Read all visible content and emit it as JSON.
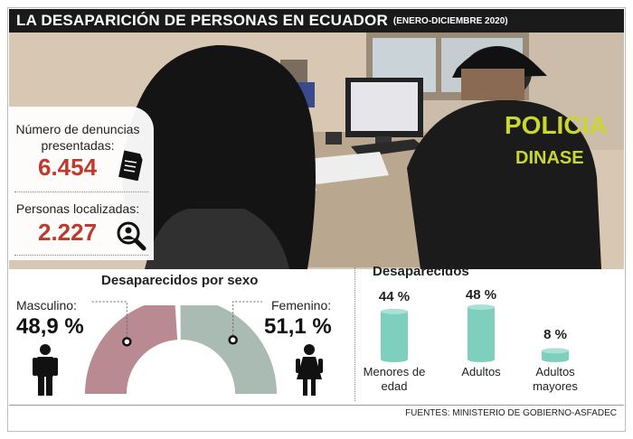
{
  "title": "LA DESAPARICIÓN DE PERSONAS EN ECUADOR",
  "subtitle": "(ENERO-DICIEMBRE 2020)",
  "stats": {
    "denuncias_label": "Número de denuncias presentadas:",
    "denuncias_value": "6.454",
    "localizadas_label": "Personas localizadas:",
    "localizadas_value": "2.227"
  },
  "photo": {
    "vest_line1": "POLICIA",
    "vest_line2": "DINASE"
  },
  "colors": {
    "masculino": "#b98a92",
    "femenino": "#a9bbb2",
    "bar": "#7fcfbf",
    "bar_top": "#a8e2d6",
    "value_red": "#c0392b"
  },
  "chart_data": [
    {
      "type": "pie",
      "title": "Desaparecidos por sexo",
      "labels": [
        "Masculino:",
        "Femenino:"
      ],
      "value_labels": [
        "48,9 %",
        "51,1 %"
      ],
      "values": [
        48.9,
        51.1
      ]
    },
    {
      "type": "bar",
      "title": "Desaparecidos",
      "categories": [
        "Menores de edad",
        "Adultos",
        "Adultos mayores"
      ],
      "value_labels": [
        "44 %",
        "48 %",
        "8 %"
      ],
      "values": [
        44,
        48,
        8
      ]
    }
  ],
  "source": "FUENTES: MINISTERIO DE GOBIERNO-ASFADEC"
}
